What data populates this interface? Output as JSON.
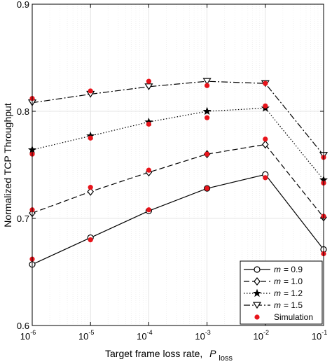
{
  "chart_data": {
    "type": "line",
    "xscale": "log",
    "x": [
      1e-06,
      1e-05,
      0.0001,
      0.001,
      0.01,
      0.1
    ],
    "xticks": [
      {
        "base": "10",
        "exp": "-6"
      },
      {
        "base": "10",
        "exp": "-5"
      },
      {
        "base": "10",
        "exp": "-4"
      },
      {
        "base": "10",
        "exp": "-3"
      },
      {
        "base": "10",
        "exp": "-2"
      },
      {
        "base": "10",
        "exp": "-1"
      }
    ],
    "xlim": [
      1e-06,
      0.1
    ],
    "ylim": [
      0.6,
      0.9
    ],
    "yticks": [
      0.6,
      0.7,
      0.8,
      0.9
    ],
    "ytick_labels": [
      "0.6",
      "0.7",
      "0.8",
      "0.9"
    ],
    "xlabel": "Target frame loss rate,",
    "xlabel_var": "P",
    "xlabel_sub": "loss",
    "ylabel": "Normalized TCP Throughput",
    "grid": true,
    "legend_position": "bottom-right",
    "series": [
      {
        "name": "m = 0.9",
        "legend_var": "m",
        "legend_value": "= 0.9",
        "marker": "circle",
        "dash": "solid",
        "values": [
          0.657,
          0.682,
          0.707,
          0.728,
          0.741,
          0.671
        ]
      },
      {
        "name": "m = 1.0",
        "legend_var": "m",
        "legend_value": "= 1.0",
        "marker": "diamond",
        "dash": "dashed",
        "values": [
          0.705,
          0.725,
          0.743,
          0.76,
          0.769,
          0.701
        ]
      },
      {
        "name": "m = 1.2",
        "legend_var": "m",
        "legend_value": "= 1.2",
        "marker": "star",
        "dash": "dotted",
        "values": [
          0.764,
          0.777,
          0.79,
          0.8,
          0.803,
          0.736
        ]
      },
      {
        "name": "m = 1.5",
        "legend_var": "m",
        "legend_value": "= 1.5",
        "marker": "triangle-down",
        "dash": "dashdot",
        "values": [
          0.808,
          0.816,
          0.823,
          0.828,
          0.826,
          0.759
        ]
      }
    ],
    "simulation": {
      "name": "Simulation",
      "color": "#e8141b",
      "points": [
        {
          "x": 1e-06,
          "y": 0.662
        },
        {
          "x": 1e-06,
          "y": 0.708
        },
        {
          "x": 1e-06,
          "y": 0.76
        },
        {
          "x": 1e-06,
          "y": 0.812
        },
        {
          "x": 1e-05,
          "y": 0.68
        },
        {
          "x": 1e-05,
          "y": 0.729
        },
        {
          "x": 1e-05,
          "y": 0.775
        },
        {
          "x": 1e-05,
          "y": 0.819
        },
        {
          "x": 0.0001,
          "y": 0.708
        },
        {
          "x": 0.0001,
          "y": 0.745
        },
        {
          "x": 0.0001,
          "y": 0.788
        },
        {
          "x": 0.0001,
          "y": 0.828
        },
        {
          "x": 0.001,
          "y": 0.728
        },
        {
          "x": 0.001,
          "y": 0.76
        },
        {
          "x": 0.001,
          "y": 0.794
        },
        {
          "x": 0.001,
          "y": 0.824
        },
        {
          "x": 0.01,
          "y": 0.738
        },
        {
          "x": 0.01,
          "y": 0.774
        },
        {
          "x": 0.01,
          "y": 0.805
        },
        {
          "x": 0.01,
          "y": 0.826
        },
        {
          "x": 0.1,
          "y": 0.667
        },
        {
          "x": 0.1,
          "y": 0.702
        },
        {
          "x": 0.1,
          "y": 0.733
        },
        {
          "x": 0.1,
          "y": 0.757
        }
      ]
    }
  }
}
